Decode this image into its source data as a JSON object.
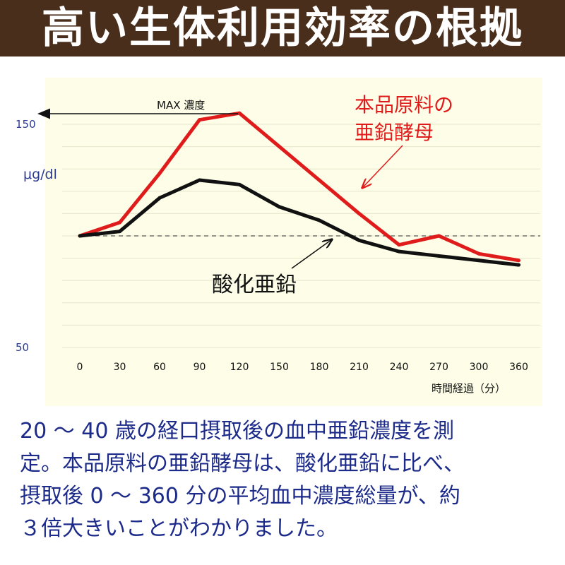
{
  "header": {
    "title": "高い生体利用効率の根拠"
  },
  "chart_data": {
    "type": "line",
    "x": [
      0,
      30,
      60,
      90,
      120,
      150,
      180,
      210,
      240,
      270,
      300,
      360
    ],
    "x_tick_labels": [
      "0",
      "30",
      "60",
      "90",
      "120",
      "150",
      "180",
      "210",
      "240",
      "270",
      "300",
      "360"
    ],
    "xlabel": "時間経過（分）",
    "ylabel": "μg/dl",
    "y_tick_labels": [
      "150",
      "50"
    ],
    "ylim": [
      50,
      150
    ],
    "series": [
      {
        "name": "本品原料の亜鉛酵母",
        "color": "#e01b1b",
        "values": [
          100,
          106,
          128,
          152,
          155,
          140,
          125,
          110,
          96,
          100,
          92,
          89
        ]
      },
      {
        "name": "酸化亜鉛",
        "color": "#111111",
        "values": [
          100,
          102,
          117,
          125,
          123,
          113,
          107,
          98,
          93,
          91,
          89,
          87
        ]
      }
    ],
    "baseline": {
      "y": 100,
      "style": "dashed"
    },
    "annotations": {
      "max": "MAX 濃度",
      "red_label_line1": "本品原料の",
      "red_label_line2": "亜鉛酵母",
      "black_label": "酸化亜鉛"
    },
    "background_color": "#fdfde8"
  },
  "caption": {
    "line1": "20 ～ 40 歳の経口摂取後の血中亜鉛濃度を測",
    "line2": "定。本品原料の亜鉛酵母は、酸化亜鉛に比べ、",
    "line3": "摂取後 0 ～ 360 分の平均血中濃度総量が、約",
    "line4": "３倍大きいことがわかりました。"
  }
}
